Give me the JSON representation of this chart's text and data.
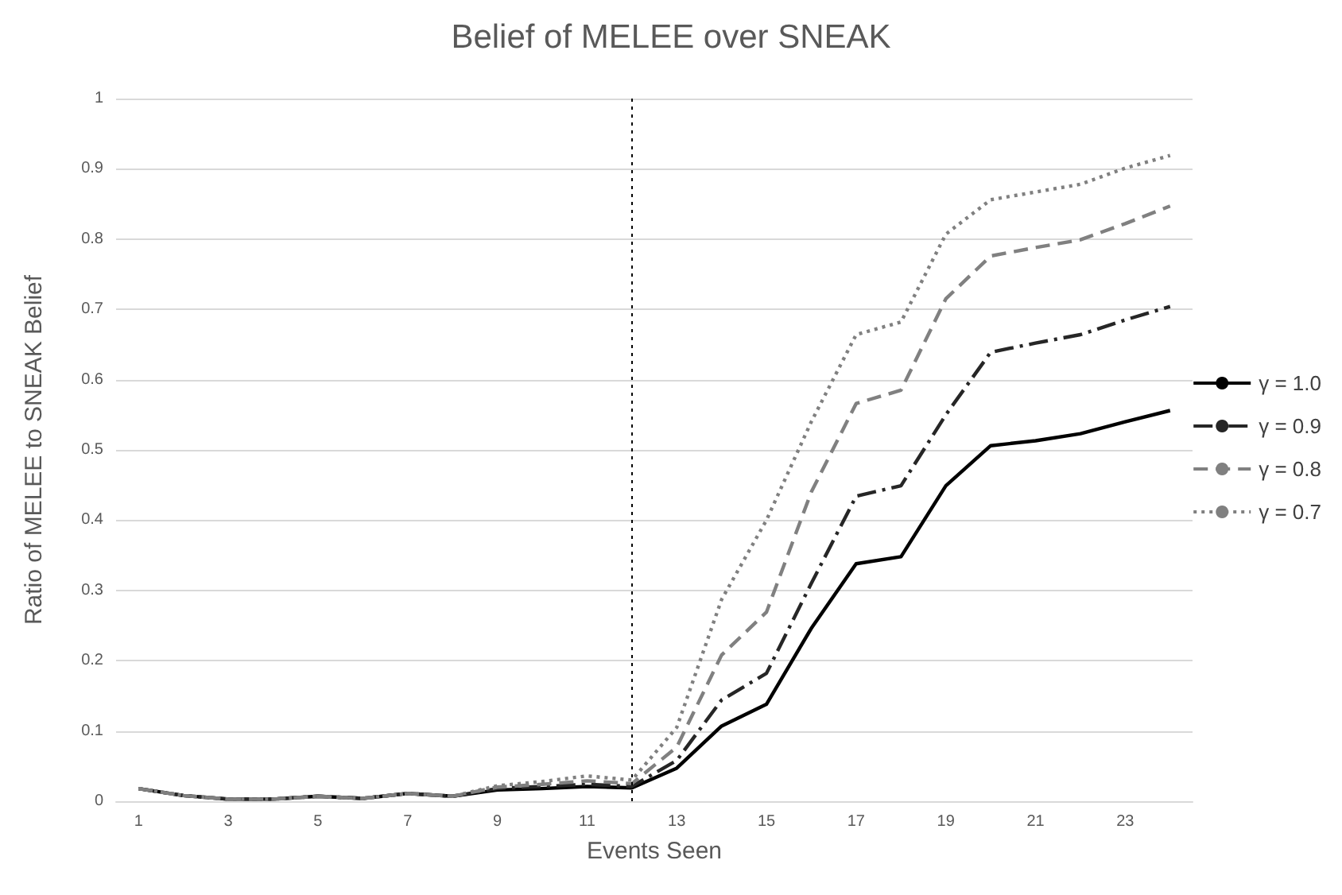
{
  "chart_data": {
    "type": "line",
    "title": "Belief of MELEE over SNEAK",
    "xlabel": "Events Seen",
    "ylabel": "Ratio of MELEE to SNEAK Belief",
    "x": [
      1,
      2,
      3,
      4,
      5,
      6,
      7,
      8,
      9,
      10,
      11,
      12,
      13,
      14,
      15,
      16,
      17,
      18,
      19,
      20,
      21,
      22,
      23,
      24
    ],
    "xlim": [
      0.5,
      24.5
    ],
    "xticks": [
      1,
      3,
      5,
      7,
      9,
      11,
      13,
      15,
      17,
      19,
      21,
      23
    ],
    "ylim": [
      0,
      1
    ],
    "yticks": [
      0,
      0.1,
      0.2,
      0.3,
      0.4,
      0.5,
      0.6,
      0.7,
      0.8,
      0.9,
      1
    ],
    "grid": "y",
    "legend": "right",
    "marker": "none",
    "ref_lines": [
      {
        "axis": "x",
        "value": 12,
        "color": "#000000",
        "line_style": "dotted"
      }
    ],
    "series": [
      {
        "name": "γ = 1.0",
        "color": "#000000",
        "line_style": "solid",
        "values": [
          0.018,
          0.008,
          0.003,
          0.003,
          0.007,
          0.004,
          0.011,
          0.007,
          0.016,
          0.018,
          0.021,
          0.019,
          0.047,
          0.107,
          0.138,
          0.246,
          0.338,
          0.348,
          0.449,
          0.506,
          0.513,
          0.523,
          0.54,
          0.556
        ]
      },
      {
        "name": "γ = 0.9",
        "color": "#262626",
        "line_style": "dashdot",
        "values": [
          0.018,
          0.008,
          0.003,
          0.003,
          0.007,
          0.004,
          0.011,
          0.007,
          0.018,
          0.021,
          0.024,
          0.021,
          0.058,
          0.144,
          0.182,
          0.31,
          0.434,
          0.449,
          0.55,
          0.639,
          0.652,
          0.664,
          0.685,
          0.704
        ]
      },
      {
        "name": "γ = 0.8",
        "color": "#808080",
        "line_style": "dashed",
        "values": [
          0.018,
          0.008,
          0.003,
          0.003,
          0.007,
          0.004,
          0.011,
          0.007,
          0.02,
          0.024,
          0.029,
          0.025,
          0.077,
          0.208,
          0.269,
          0.44,
          0.566,
          0.585,
          0.715,
          0.776,
          0.788,
          0.799,
          0.822,
          0.847
        ]
      },
      {
        "name": "γ = 0.7",
        "color": "#808080",
        "line_style": "dotted",
        "values": [
          0.018,
          0.008,
          0.003,
          0.003,
          0.007,
          0.004,
          0.011,
          0.007,
          0.022,
          0.028,
          0.036,
          0.03,
          0.105,
          0.287,
          0.4,
          0.54,
          0.664,
          0.682,
          0.807,
          0.856,
          0.867,
          0.878,
          0.901,
          0.919
        ]
      }
    ]
  }
}
